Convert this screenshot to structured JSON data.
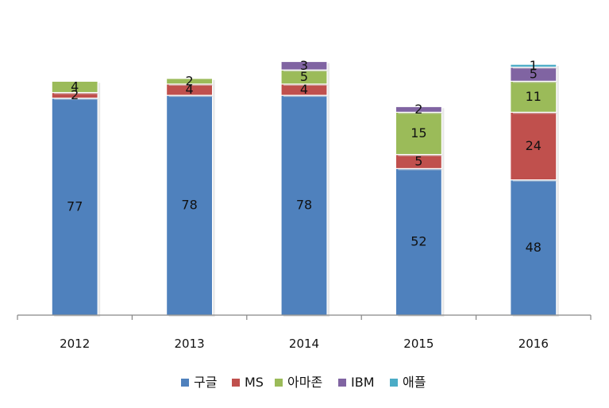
{
  "chart_data": {
    "type": "bar",
    "stacked": true,
    "categories": [
      "2012",
      "2013",
      "2014",
      "2015",
      "2016"
    ],
    "series": [
      {
        "name": "구글",
        "color": "#4F81BD",
        "values": [
          77,
          78,
          78,
          52,
          48
        ]
      },
      {
        "name": "MS",
        "color": "#C0504D",
        "values": [
          2,
          4,
          4,
          5,
          24
        ]
      },
      {
        "name": "아마존",
        "color": "#9BBB59",
        "values": [
          4,
          2,
          5,
          15,
          11
        ]
      },
      {
        "name": "IBM",
        "color": "#8064A2",
        "values": [
          0,
          0,
          3,
          2,
          5
        ]
      },
      {
        "name": "애플",
        "color": "#4BACC6",
        "values": [
          0,
          0,
          0,
          0,
          1
        ]
      }
    ],
    "ylim": [
      0,
      100
    ],
    "grid": false,
    "legend_position": "bottom"
  }
}
